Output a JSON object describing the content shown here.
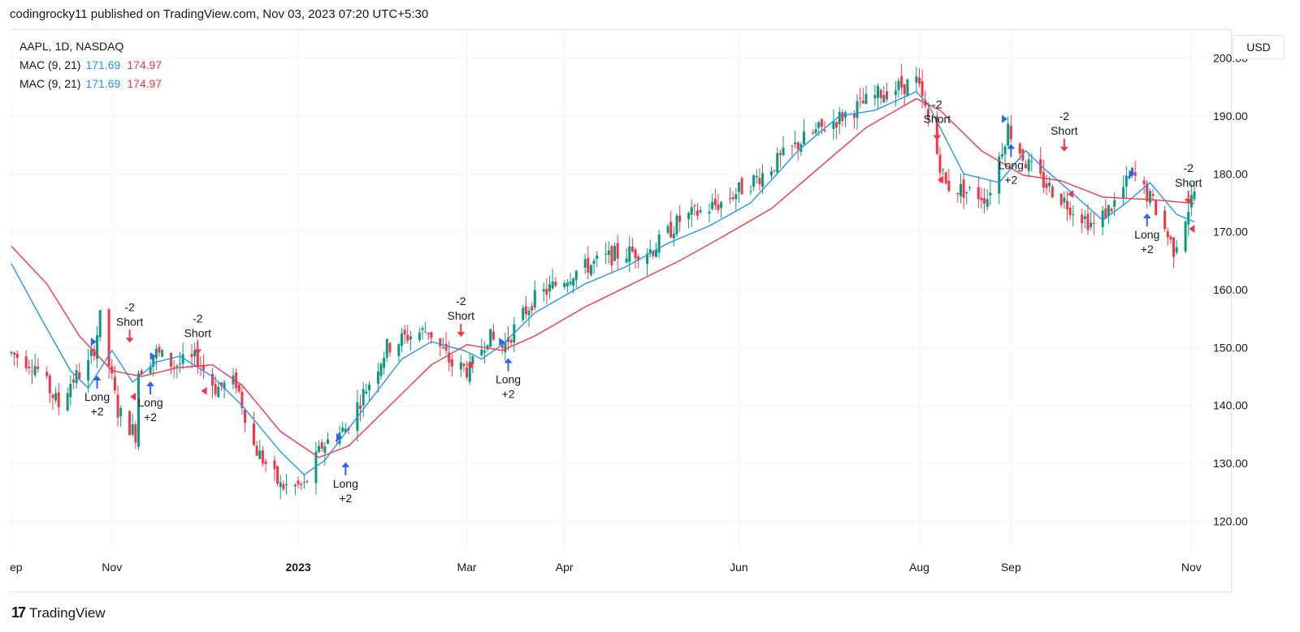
{
  "header": {
    "published_line": "codingrocky11 published on TradingView.com, Nov 03, 2023 07:20 UTC+5:30"
  },
  "legend": {
    "symbol": "AAPL, 1D, NASDAQ",
    "rows": [
      {
        "label": "MAC (9, 21)",
        "fast": "171.69",
        "slow": "174.97"
      },
      {
        "label": "MAC (9, 21)",
        "fast": "171.69",
        "slow": "174.97"
      }
    ]
  },
  "currency_button": "USD",
  "footer": {
    "brand": "TradingView",
    "logo_glyph": "17"
  },
  "colors": {
    "fast_ma": "#2196f3",
    "slow_ma": "#f23645",
    "candle_up": "#089981",
    "candle_down": "#f23645",
    "long_marker": "#2962ff",
    "short_marker": "#f23645",
    "grid": "#f0f3fa"
  },
  "chart_data": {
    "type": "candlestick",
    "title": "AAPL, 1D, NASDAQ",
    "ylim": [
      115,
      205
    ],
    "y_ticks": [
      120,
      130,
      140,
      150,
      160,
      170,
      180,
      190,
      200
    ],
    "y_tick_labels": [
      "120.00",
      "130.00",
      "140.00",
      "150.00",
      "160.00",
      "170.00",
      "180.00",
      "190.00",
      "200.00"
    ],
    "x_range": [
      "2022-09-28",
      "2023-11-02"
    ],
    "x_ticks": [
      {
        "date": "2022-09-28",
        "label": "ep",
        "bold": false
      },
      {
        "date": "2022-11-01",
        "label": "Nov",
        "bold": false
      },
      {
        "date": "2023-01-03",
        "label": "2023",
        "bold": true
      },
      {
        "date": "2023-03-01",
        "label": "Mar",
        "bold": false
      },
      {
        "date": "2023-04-03",
        "label": "Apr",
        "bold": false
      },
      {
        "date": "2023-06-01",
        "label": "Jun",
        "bold": false
      },
      {
        "date": "2023-08-01",
        "label": "Aug",
        "bold": false
      },
      {
        "date": "2023-09-01",
        "label": "Sep",
        "bold": false
      },
      {
        "date": "2023-11-01",
        "label": "Nov",
        "bold": false
      }
    ],
    "anchors": [
      [
        "2022-09-28",
        149
      ],
      [
        "2022-10-06",
        147
      ],
      [
        "2022-10-14",
        140
      ],
      [
        "2022-10-18",
        144
      ],
      [
        "2022-10-24",
        147
      ],
      [
        "2022-10-26",
        150
      ],
      [
        "2022-10-28",
        155
      ],
      [
        "2022-11-03",
        139
      ],
      [
        "2022-11-09",
        135
      ],
      [
        "2022-11-10",
        146
      ],
      [
        "2022-11-16",
        149
      ],
      [
        "2022-11-22",
        147
      ],
      [
        "2022-11-30",
        148
      ],
      [
        "2022-12-06",
        143
      ],
      [
        "2022-12-13",
        144
      ],
      [
        "2022-12-19",
        133
      ],
      [
        "2022-12-28",
        126
      ],
      [
        "2023-01-05",
        126
      ],
      [
        "2023-01-11",
        133
      ],
      [
        "2023-01-19",
        136
      ],
      [
        "2023-02-02",
        150
      ],
      [
        "2023-02-09",
        152
      ],
      [
        "2023-02-16",
        153
      ],
      [
        "2023-02-24",
        147
      ],
      [
        "2023-03-02",
        146
      ],
      [
        "2023-03-08",
        152
      ],
      [
        "2023-03-13",
        150
      ],
      [
        "2023-03-23",
        158
      ],
      [
        "2023-04-06",
        163
      ],
      [
        "2023-04-20",
        166
      ],
      [
        "2023-05-03",
        167
      ],
      [
        "2023-05-12",
        172
      ],
      [
        "2023-05-26",
        175
      ],
      [
        "2023-06-09",
        180
      ],
      [
        "2023-06-23",
        186
      ],
      [
        "2023-07-06",
        190
      ],
      [
        "2023-07-19",
        194
      ],
      [
        "2023-07-31",
        196
      ],
      [
        "2023-08-03",
        191
      ],
      [
        "2023-08-10",
        178
      ],
      [
        "2023-08-24",
        176
      ],
      [
        "2023-08-31",
        188
      ],
      [
        "2023-09-06",
        182
      ],
      [
        "2023-09-11",
        179
      ],
      [
        "2023-09-22",
        174
      ],
      [
        "2023-09-29",
        171
      ],
      [
        "2023-10-06",
        175
      ],
      [
        "2023-10-12",
        180
      ],
      [
        "2023-10-19",
        175
      ],
      [
        "2023-10-26",
        167
      ],
      [
        "2023-11-02",
        177
      ]
    ],
    "series": [
      {
        "name": "MAC (9, 21)",
        "values_label": "171.69",
        "color": "#2196f3",
        "points": [
          [
            "2022-09-28",
            164.5
          ],
          [
            "2022-10-07",
            156
          ],
          [
            "2022-10-18",
            146
          ],
          [
            "2022-10-24",
            143
          ],
          [
            "2022-11-01",
            149.5
          ],
          [
            "2022-11-08",
            144
          ],
          [
            "2022-11-16",
            147.5
          ],
          [
            "2022-11-24",
            148.5
          ],
          [
            "2022-12-05",
            145
          ],
          [
            "2022-12-15",
            140
          ],
          [
            "2022-12-28",
            132
          ],
          [
            "2023-01-05",
            128
          ],
          [
            "2023-01-12",
            130.5
          ],
          [
            "2023-01-23",
            138
          ],
          [
            "2023-02-07",
            148
          ],
          [
            "2023-02-17",
            151
          ],
          [
            "2023-02-28",
            149.5
          ],
          [
            "2023-03-06",
            148
          ],
          [
            "2023-03-13",
            150.5
          ],
          [
            "2023-03-24",
            156
          ],
          [
            "2023-04-10",
            161
          ],
          [
            "2023-04-24",
            164
          ],
          [
            "2023-05-08",
            168
          ],
          [
            "2023-05-22",
            171
          ],
          [
            "2023-06-05",
            175
          ],
          [
            "2023-06-21",
            184
          ],
          [
            "2023-07-05",
            190
          ],
          [
            "2023-07-17",
            191
          ],
          [
            "2023-07-31",
            194.2
          ],
          [
            "2023-08-04",
            192
          ],
          [
            "2023-08-16",
            180
          ],
          [
            "2023-08-28",
            178.5
          ],
          [
            "2023-09-06",
            184
          ],
          [
            "2023-09-12",
            181
          ],
          [
            "2023-09-21",
            177
          ],
          [
            "2023-10-02",
            172
          ],
          [
            "2023-10-10",
            175
          ],
          [
            "2023-10-18",
            178.5
          ],
          [
            "2023-10-27",
            173
          ],
          [
            "2023-11-02",
            171.7
          ]
        ]
      },
      {
        "name": "MAC (9, 21)",
        "values_label": "174.97",
        "color": "#f23645",
        "points": [
          [
            "2022-09-28",
            167.5
          ],
          [
            "2022-10-10",
            161
          ],
          [
            "2022-10-21",
            152
          ],
          [
            "2022-11-01",
            146
          ],
          [
            "2022-11-11",
            145
          ],
          [
            "2022-11-23",
            146.5
          ],
          [
            "2022-12-05",
            147
          ],
          [
            "2022-12-15",
            143.5
          ],
          [
            "2022-12-28",
            135.5
          ],
          [
            "2023-01-10",
            131
          ],
          [
            "2023-01-20",
            133
          ],
          [
            "2023-02-03",
            140
          ],
          [
            "2023-02-17",
            147
          ],
          [
            "2023-03-01",
            150.5
          ],
          [
            "2023-03-13",
            149.5
          ],
          [
            "2023-03-24",
            152
          ],
          [
            "2023-04-10",
            157
          ],
          [
            "2023-04-26",
            161
          ],
          [
            "2023-05-12",
            165
          ],
          [
            "2023-05-26",
            169
          ],
          [
            "2023-06-12",
            174
          ],
          [
            "2023-06-28",
            181
          ],
          [
            "2023-07-14",
            188
          ],
          [
            "2023-07-31",
            193
          ],
          [
            "2023-08-08",
            191
          ],
          [
            "2023-08-22",
            184
          ],
          [
            "2023-09-05",
            179.8
          ],
          [
            "2023-09-18",
            178.8
          ],
          [
            "2023-10-02",
            176
          ],
          [
            "2023-10-20",
            175.5
          ],
          [
            "2023-11-02",
            174.9
          ]
        ]
      }
    ],
    "signals": [
      {
        "date": "2022-10-27",
        "kind": "long",
        "price": 146,
        "line1": "Long",
        "line2": "+2"
      },
      {
        "date": "2022-11-07",
        "kind": "short",
        "price": 150,
        "line1": "-2",
        "line2": "Short"
      },
      {
        "date": "2022-11-14",
        "kind": "long",
        "price": 145,
        "line1": "Long",
        "line2": "+2"
      },
      {
        "date": "2022-11-30",
        "kind": "short",
        "price": 148,
        "line1": "-2",
        "line2": "Short"
      },
      {
        "date": "2023-01-19",
        "kind": "long",
        "price": 131,
        "line1": "Long",
        "line2": "+2"
      },
      {
        "date": "2023-02-27",
        "kind": "short",
        "price": 151,
        "line1": "-2",
        "line2": "Short"
      },
      {
        "date": "2023-03-15",
        "kind": "long",
        "price": 149,
        "line1": "Long",
        "line2": "+2"
      },
      {
        "date": "2023-08-07",
        "kind": "short",
        "price": 185,
        "line1": "-2",
        "line2": "Short"
      },
      {
        "date": "2023-09-01",
        "kind": "long",
        "price": 186,
        "line1": "Long",
        "line2": "+2"
      },
      {
        "date": "2023-09-19",
        "kind": "short",
        "price": 183,
        "line1": "-2",
        "line2": "Short"
      },
      {
        "date": "2023-10-17",
        "kind": "long",
        "price": 174,
        "line1": "Long",
        "line2": "+2"
      },
      {
        "date": "2023-10-31",
        "kind": "short",
        "price": 174,
        "line1": "-2",
        "line2": "Short"
      }
    ],
    "fills": [
      {
        "date": "2022-10-26",
        "kind": "long",
        "price": 151
      },
      {
        "date": "2022-11-08",
        "kind": "short",
        "price": 141.5
      },
      {
        "date": "2022-11-15",
        "kind": "long",
        "price": 148.5
      },
      {
        "date": "2022-12-02",
        "kind": "short",
        "price": 142.5
      },
      {
        "date": "2023-01-17",
        "kind": "long",
        "price": 134.5
      },
      {
        "date": "2023-03-02",
        "kind": "short",
        "price": 147
      },
      {
        "date": "2023-03-13",
        "kind": "long",
        "price": 151
      },
      {
        "date": "2023-08-08",
        "kind": "short",
        "price": 179
      },
      {
        "date": "2023-08-30",
        "kind": "long",
        "price": 189.5
      },
      {
        "date": "2023-09-21",
        "kind": "short",
        "price": 176.5
      },
      {
        "date": "2023-10-12",
        "kind": "long",
        "price": 180
      },
      {
        "date": "2023-11-01",
        "kind": "short",
        "price": 170.5
      }
    ]
  }
}
